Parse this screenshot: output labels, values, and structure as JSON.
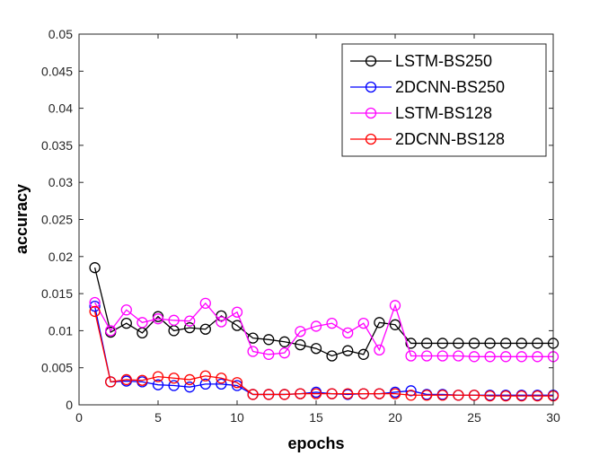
{
  "chart_data": {
    "type": "line",
    "title": "",
    "xlabel": "epochs",
    "ylabel": "accuracy",
    "xlim": [
      0,
      30
    ],
    "ylim": [
      0,
      0.05
    ],
    "xticks": [
      0,
      5,
      10,
      15,
      20,
      25,
      30
    ],
    "yticks": [
      0,
      0.005,
      0.01,
      0.015,
      0.02,
      0.025,
      0.03,
      0.035,
      0.04,
      0.045,
      0.05
    ],
    "grid": false,
    "legend_position": "top-right",
    "series": [
      {
        "name": "LSTM-BS250",
        "color": "#000000",
        "x": [
          1,
          2,
          3,
          4,
          5,
          6,
          7,
          8,
          9,
          10,
          11,
          12,
          13,
          14,
          15,
          16,
          17,
          18,
          19,
          20,
          21,
          22,
          23,
          24,
          25,
          26,
          27,
          28,
          29,
          30
        ],
        "values": [
          0.0185,
          0.0098,
          0.011,
          0.0097,
          0.0119,
          0.01,
          0.0104,
          0.0102,
          0.012,
          0.0107,
          0.009,
          0.0088,
          0.0085,
          0.0081,
          0.0076,
          0.0066,
          0.0073,
          0.0068,
          0.0111,
          0.0108,
          0.0083,
          0.0083,
          0.0083,
          0.0083,
          0.0083,
          0.0083,
          0.0083,
          0.0083,
          0.0083,
          0.0083
        ]
      },
      {
        "name": "2DCNN-BS250",
        "color": "#0000ff",
        "x": [
          1,
          2,
          3,
          4,
          5,
          6,
          7,
          8,
          9,
          10,
          11,
          12,
          13,
          14,
          15,
          16,
          17,
          18,
          19,
          20,
          21,
          22,
          23,
          24,
          25,
          26,
          27,
          28,
          29,
          30
        ],
        "values": [
          0.0133,
          0.0031,
          0.0032,
          0.0031,
          0.0027,
          0.0026,
          0.0024,
          0.0028,
          0.0028,
          0.0026,
          0.0014,
          0.0014,
          0.0014,
          0.0015,
          0.0017,
          0.0015,
          0.0014,
          0.0015,
          0.0015,
          0.0017,
          0.0019,
          0.0014,
          0.0014,
          0.0013,
          0.0013,
          0.0013,
          0.0013,
          0.0013,
          0.0013,
          0.0013
        ]
      },
      {
        "name": "LSTM-BS128",
        "color": "#ff00ff",
        "x": [
          1,
          2,
          3,
          4,
          5,
          6,
          7,
          8,
          9,
          10,
          11,
          12,
          13,
          14,
          15,
          16,
          17,
          18,
          19,
          20,
          21,
          22,
          23,
          24,
          25,
          26,
          27,
          28,
          29,
          30
        ],
        "values": [
          0.0138,
          0.01,
          0.0128,
          0.0111,
          0.0116,
          0.0114,
          0.0113,
          0.0137,
          0.0112,
          0.0125,
          0.0072,
          0.0068,
          0.007,
          0.0099,
          0.0106,
          0.011,
          0.0097,
          0.011,
          0.0074,
          0.0134,
          0.0066,
          0.0066,
          0.0066,
          0.0066,
          0.0065,
          0.0065,
          0.0065,
          0.0065,
          0.0065,
          0.0065
        ]
      },
      {
        "name": "2DCNN-BS128",
        "color": "#ff0000",
        "x": [
          1,
          2,
          3,
          4,
          5,
          6,
          7,
          8,
          9,
          10,
          11,
          12,
          13,
          14,
          15,
          16,
          17,
          18,
          19,
          20,
          21,
          22,
          23,
          24,
          25,
          26,
          27,
          28,
          29,
          30
        ],
        "values": [
          0.0126,
          0.0031,
          0.0034,
          0.0033,
          0.0038,
          0.0036,
          0.0034,
          0.0039,
          0.0036,
          0.003,
          0.0014,
          0.0014,
          0.0014,
          0.0015,
          0.0015,
          0.0015,
          0.0015,
          0.0015,
          0.0015,
          0.0015,
          0.0013,
          0.0013,
          0.0013,
          0.0013,
          0.0013,
          0.0012,
          0.0012,
          0.0012,
          0.0012,
          0.0012
        ]
      }
    ]
  }
}
